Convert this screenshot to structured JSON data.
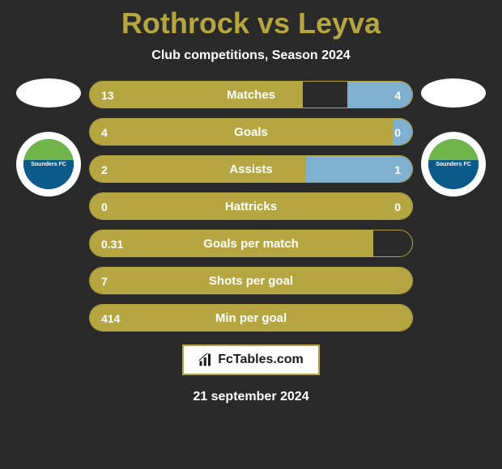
{
  "title": "Rothrock vs Leyva",
  "subtitle": "Club competitions, Season 2024",
  "date": "21 september 2024",
  "footer_site": "FcTables.com",
  "colors": {
    "accent": "#b5a642",
    "accent_light": "#d4c86a",
    "right_bar": "#7fb0d0",
    "background": "#2a2a2a",
    "text": "#ffffff",
    "badge_bg": "#ffffff",
    "club_green": "#6fb54a",
    "club_blue": "#0b5b8a"
  },
  "left_club": {
    "name": "Sounders FC"
  },
  "right_club": {
    "name": "Sounders FC"
  },
  "stats": [
    {
      "label": "Matches",
      "left_val": "13",
      "right_val": "4",
      "left_pct": 66,
      "right_pct": 20
    },
    {
      "label": "Goals",
      "left_val": "4",
      "right_val": "0",
      "left_pct": 100,
      "right_pct": 6
    },
    {
      "label": "Assists",
      "left_val": "2",
      "right_val": "1",
      "left_pct": 67,
      "right_pct": 33
    },
    {
      "label": "Hattricks",
      "left_val": "0",
      "right_val": "0",
      "left_pct": 100,
      "right_pct": 0
    },
    {
      "label": "Goals per match",
      "left_val": "0.31",
      "right_val": "",
      "left_pct": 88,
      "right_pct": 0
    },
    {
      "label": "Shots per goal",
      "left_val": "7",
      "right_val": "",
      "left_pct": 100,
      "right_pct": 0
    },
    {
      "label": "Min per goal",
      "left_val": "414",
      "right_val": "",
      "left_pct": 100,
      "right_pct": 0
    }
  ]
}
